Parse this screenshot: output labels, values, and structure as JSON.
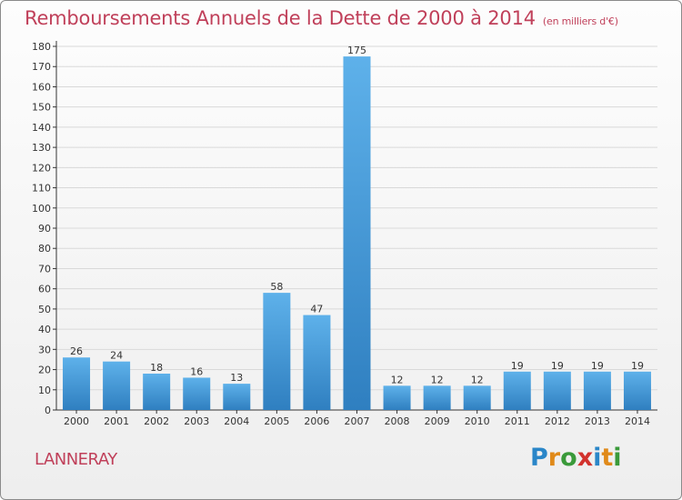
{
  "header": {
    "title": "Remboursements Annuels de la Dette de 2000 à 2014",
    "unit": "(en milliers d'€)"
  },
  "footer": {
    "commune": "LANNERAY",
    "logo_text": "Proxiti",
    "logo_letters": [
      {
        "char": "P",
        "color": "#2a86c8"
      },
      {
        "char": "r",
        "color": "#e08a1a"
      },
      {
        "char": "o",
        "color": "#3a9a3a"
      },
      {
        "char": "x",
        "color": "#d2322d"
      },
      {
        "char": "i",
        "color": "#2a86c8"
      },
      {
        "char": "t",
        "color": "#e08a1a"
      },
      {
        "char": "i",
        "color": "#3a9a3a"
      }
    ]
  },
  "colors": {
    "bar_light": "#5eb1ea",
    "bar_dark": "#2f7fc0",
    "title": "#c0405a",
    "grid": "#d9d9d9"
  },
  "chart_data": {
    "type": "bar",
    "title": "Remboursements Annuels de la Dette de 2000 à 2014",
    "subtitle": "(en milliers d'€)",
    "categories": [
      "2000",
      "2001",
      "2002",
      "2003",
      "2004",
      "2005",
      "2006",
      "2007",
      "2008",
      "2009",
      "2010",
      "2011",
      "2012",
      "2013",
      "2014"
    ],
    "values": [
      26,
      24,
      18,
      16,
      13,
      58,
      47,
      175,
      12,
      12,
      12,
      19,
      19,
      19,
      19
    ],
    "xlabel": "",
    "ylabel": "",
    "ylim": [
      0,
      180
    ],
    "yticks": [
      0,
      10,
      20,
      30,
      40,
      50,
      60,
      70,
      80,
      90,
      100,
      110,
      120,
      130,
      140,
      150,
      160,
      170,
      180
    ],
    "grid": true,
    "data_labels": true
  }
}
